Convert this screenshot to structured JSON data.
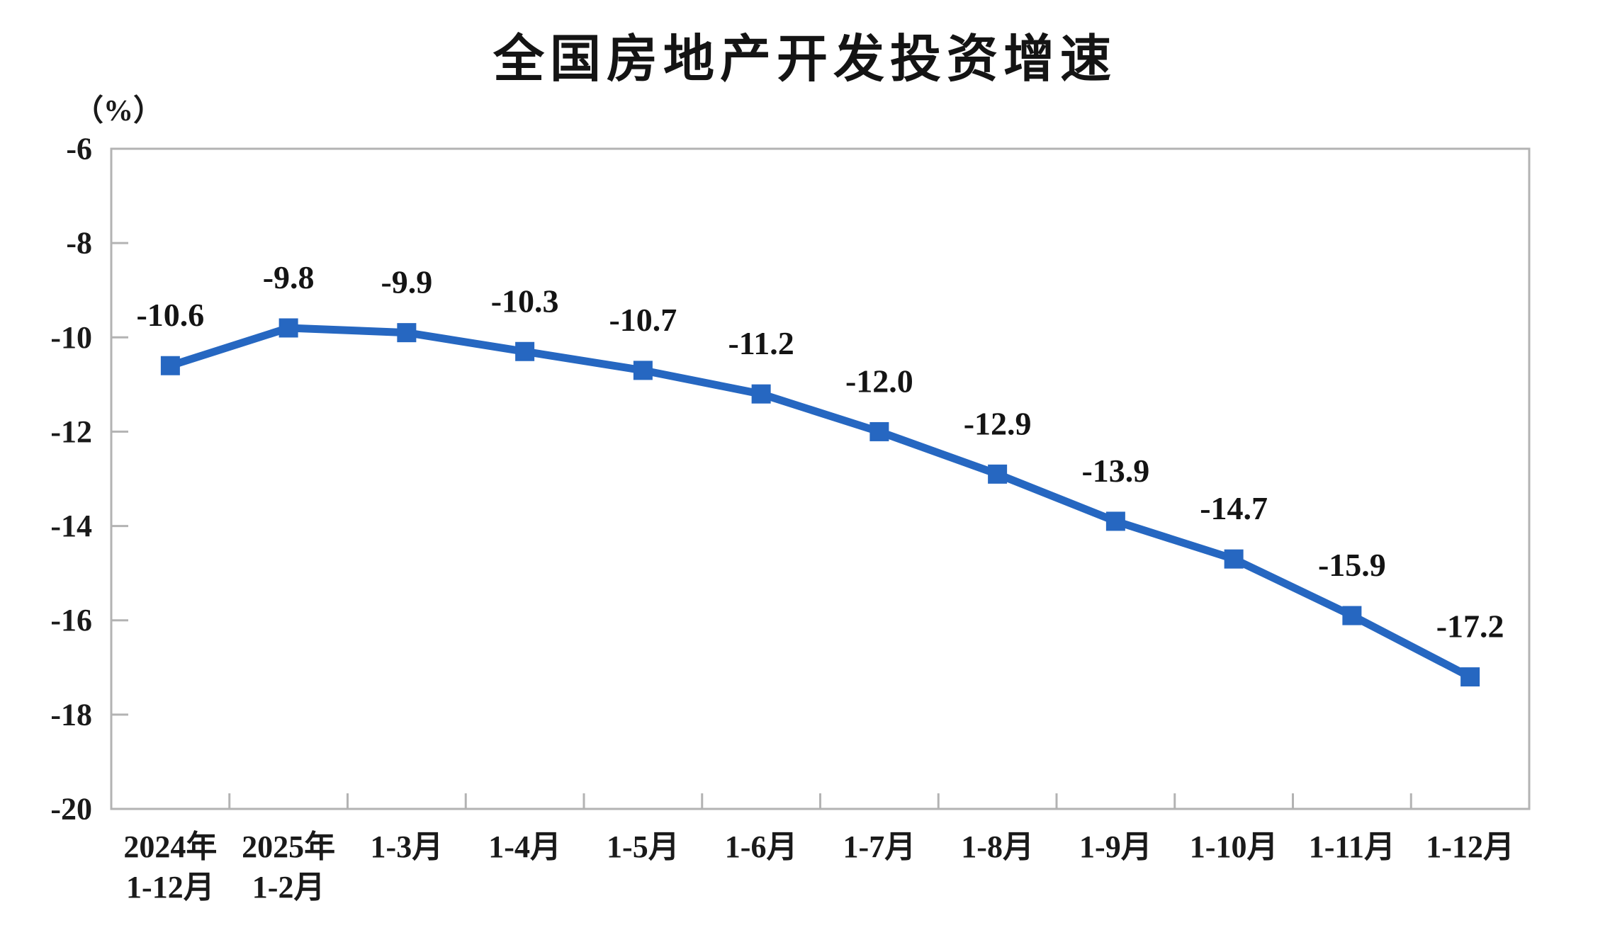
{
  "chart_data": {
    "type": "line",
    "title": "全国房地产开发投资增速",
    "unit_label": "（%）",
    "categories": [
      [
        "2024年",
        "1-12月"
      ],
      [
        "2025年",
        "1-2月"
      ],
      [
        "1-3月"
      ],
      [
        "1-4月"
      ],
      [
        "1-5月"
      ],
      [
        "1-6月"
      ],
      [
        "1-7月"
      ],
      [
        "1-8月"
      ],
      [
        "1-9月"
      ],
      [
        "1-10月"
      ],
      [
        "1-11月"
      ],
      [
        "1-12月"
      ]
    ],
    "values": [
      -10.6,
      -9.8,
      -9.9,
      -10.3,
      -10.7,
      -11.2,
      -12.0,
      -12.9,
      -13.9,
      -14.7,
      -15.9,
      -17.2
    ],
    "point_labels": [
      "-10.6",
      "-9.8",
      "-9.9",
      "-10.3",
      "-10.7",
      "-11.2",
      "-12.0",
      "-12.9",
      "-13.9",
      "-14.7",
      "-15.9",
      "-17.2"
    ],
    "y_tick_values": [
      -6,
      -8,
      -10,
      -12,
      -14,
      -16,
      -18,
      -20
    ],
    "y_tick_labels": [
      "-6",
      "-8",
      "-10",
      "-12",
      "-14",
      "-16",
      "-18",
      "-20"
    ],
    "ylim": [
      -20,
      -6
    ],
    "grid": false,
    "legend": "none",
    "colors": {
      "line": "#2667C1",
      "marker": "#2667C1",
      "axis": "#b3b3b3",
      "text": "#1a1a1a"
    }
  }
}
